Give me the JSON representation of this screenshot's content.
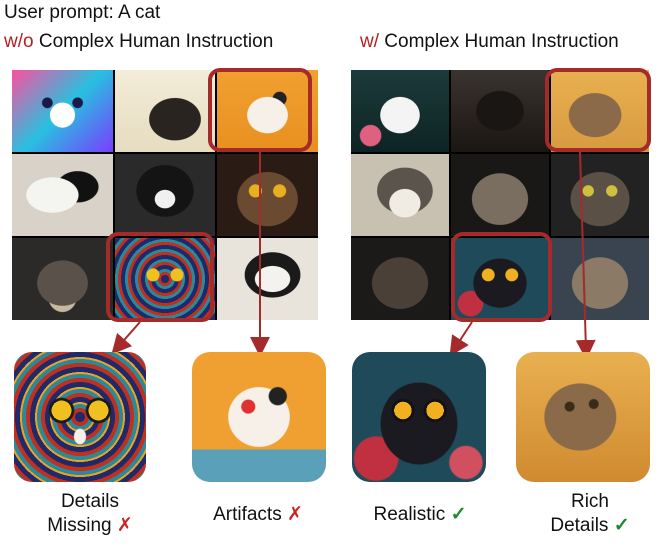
{
  "prompt_label": "User prompt: A cat",
  "left_panel": {
    "prefix": "w/o",
    "title": "Complex Human Instruction",
    "captions": [
      {
        "text_line1": "Details",
        "text_line2": "Missing",
        "mark": "✗"
      },
      {
        "text_line1": "Artifacts",
        "mark": "✗"
      }
    ]
  },
  "right_panel": {
    "prefix": "w/",
    "title": "Complex Human Instruction",
    "captions": [
      {
        "text_line1": "Realistic",
        "mark": "✓"
      },
      {
        "text_line1": "Rich",
        "text_line2": "Details",
        "mark": "✓"
      }
    ]
  },
  "colors": {
    "highlight": "#a52a2a",
    "prefix": "#b22222",
    "cross": "#cc2222",
    "check": "#1e8c2e"
  }
}
